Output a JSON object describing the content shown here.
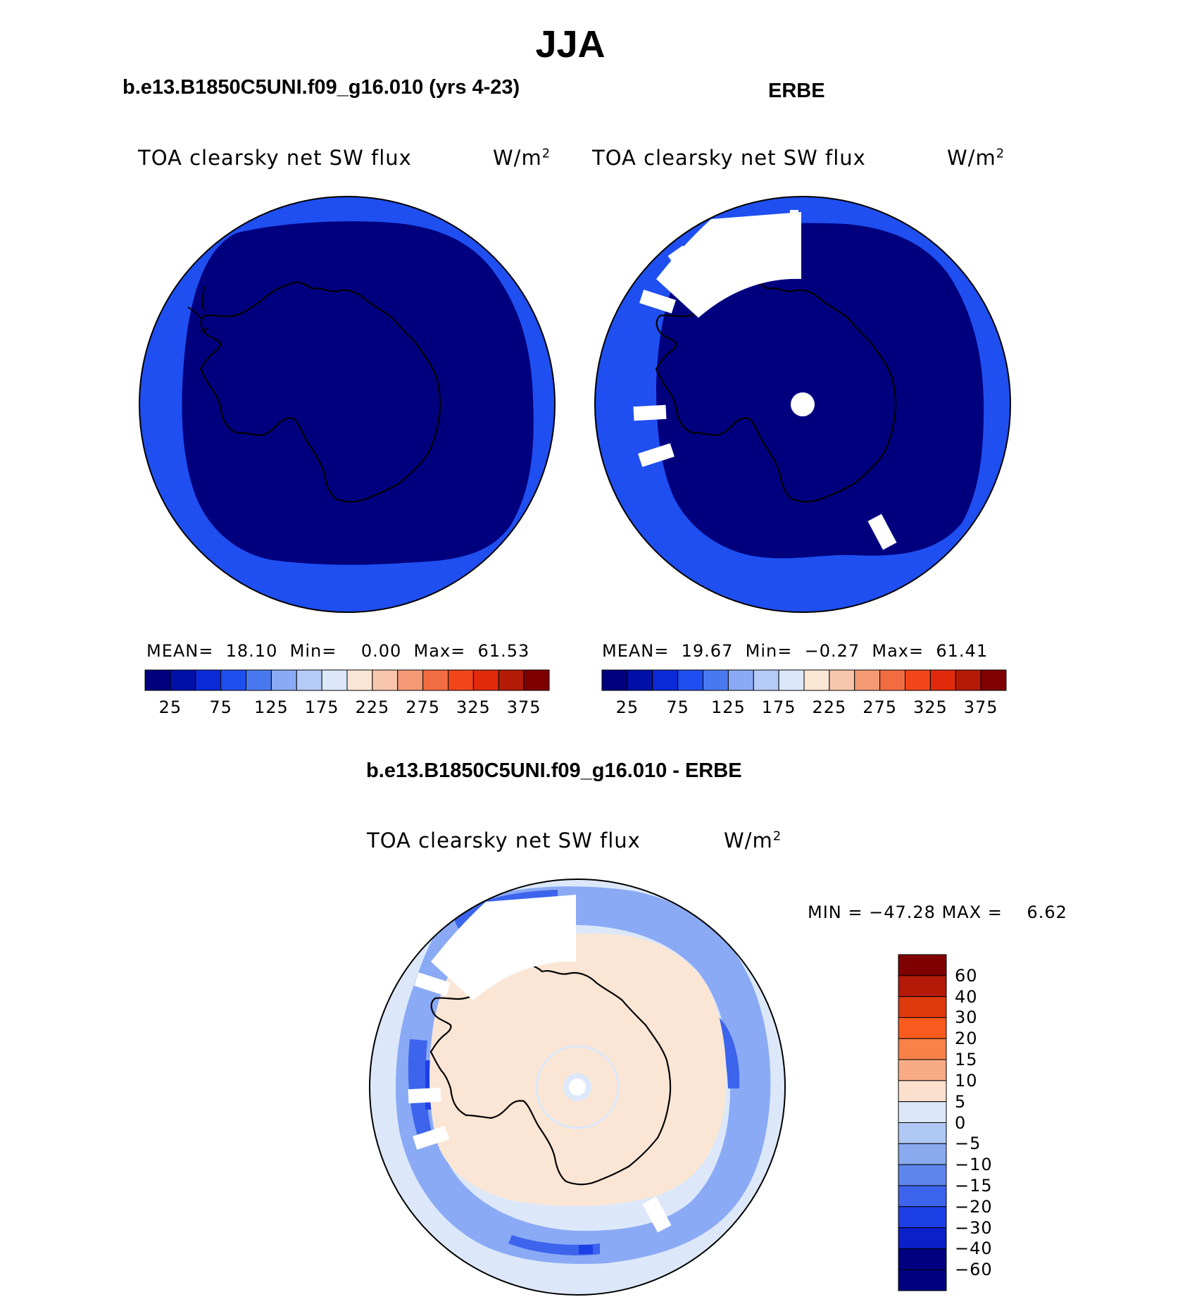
{
  "title": "JJA",
  "panels": [
    {
      "id": "model",
      "title": "b.e13.B1850C5UNI.f09_g16.010 (yrs 4-23)",
      "variable": "TOA clearsky net SW flux",
      "units": "W/m",
      "units_sup": "2",
      "stats": {
        "mean_label": "MEAN=",
        "mean": "18.10",
        "min_label": "Min=",
        "min": "0.00",
        "max_label": "Max=",
        "max": "61.53"
      }
    },
    {
      "id": "obs",
      "title": "ERBE",
      "variable": "TOA clearsky net SW flux",
      "units": "W/m",
      "units_sup": "2",
      "stats": {
        "mean_label": "MEAN=",
        "mean": "19.67",
        "min_label": "Min=",
        "min": "−0.27",
        "max_label": "Max=",
        "max": "61.41"
      }
    },
    {
      "id": "diff",
      "title": "b.e13.B1850C5UNI.f09_g16.010 - ERBE",
      "variable": "TOA clearsky net SW flux",
      "units": "W/m",
      "units_sup": "2",
      "stats": {
        "min_label": "MIN =",
        "min": "−47.28",
        "max_label": "MAX =",
        "max": "6.62"
      }
    }
  ],
  "colorbar_abs": {
    "colors": [
      "#00007f",
      "#0010a8",
      "#0a2ad8",
      "#1f4ff0",
      "#4a78f0",
      "#8aaaf5",
      "#b4caf7",
      "#dce8fa",
      "#fbe6d5",
      "#f8c6ad",
      "#f49a76",
      "#f26c42",
      "#f24519",
      "#df2b0b",
      "#b31a08",
      "#7f0000"
    ],
    "tick_labels": [
      "25",
      "75",
      "125",
      "175",
      "225",
      "275",
      "325",
      "375"
    ]
  },
  "colorbar_diff": {
    "colors": [
      "#7f0000",
      "#b31a08",
      "#df3a0d",
      "#f95b1e",
      "#f88147",
      "#f8ab85",
      "#fbe1cd",
      "#dce8fa",
      "#b0c8f5",
      "#8aaaf0",
      "#5f86ee",
      "#3d64ec",
      "#1d3fe6",
      "#0a20c8",
      "#000080"
    ],
    "tick_labels": [
      "60",
      "40",
      "30",
      "20",
      "15",
      "10",
      "5",
      "0",
      "−5",
      "−10",
      "−15",
      "−20",
      "−30",
      "−40",
      "−60"
    ]
  },
  "map_colors": {
    "abs_outer": "#1f4ff0",
    "abs_inner": "#00007f",
    "diff_background": "#dce8fa",
    "diff_land": "#fbe6d5",
    "diff_negative_mid": "#8aaaf5",
    "diff_negative_strong": "#1d3fe6",
    "missing": "#ffffff",
    "coastline": "#000000"
  }
}
